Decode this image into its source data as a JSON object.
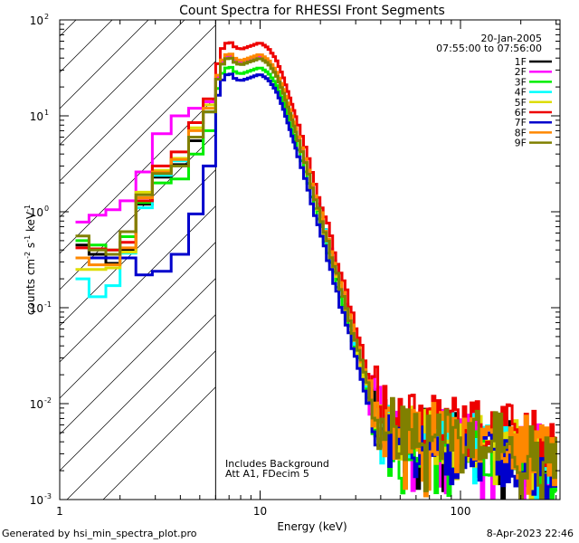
{
  "chart_data": {
    "type": "line",
    "title": "Count Spectra for RHESSI Front Segments",
    "xlabel": "Energy (keV)",
    "ylabel_parts": {
      "pre": "counts cm",
      "exp1": "-2",
      "mid1": " s",
      "exp2": "-1",
      "mid2": " keV",
      "exp3": "-1"
    },
    "x_scale": "log",
    "y_scale": "log",
    "xlim": [
      1,
      300
    ],
    "ylim": [
      0.001,
      100
    ],
    "x_ticks": [
      {
        "value": 1,
        "label": "1"
      },
      {
        "value": 10,
        "label": "10"
      },
      {
        "value": 100,
        "label": "100"
      }
    ],
    "y_ticks": [
      {
        "value": 0.001,
        "base": "10",
        "exp": "-3"
      },
      {
        "value": 0.01,
        "base": "10",
        "exp": "-2"
      },
      {
        "value": 0.1,
        "base": "10",
        "exp": "-1"
      },
      {
        "value": 1,
        "base": "10",
        "exp": "0"
      },
      {
        "value": 10,
        "base": "10",
        "exp": "1"
      },
      {
        "value": 100,
        "base": "10",
        "exp": "2"
      }
    ],
    "date": "20-Jan-2005",
    "time_range": "07:55:00 to 07:56:00",
    "annotation_lines": [
      "Includes Background",
      "Att A1, FDecim 5"
    ],
    "threshold_energy": 6,
    "series": [
      {
        "name": "1F",
        "color": "#000000",
        "scale": 1.0,
        "jitter": 0.3,
        "seed": 11,
        "low": [
          {
            "x": [
              1.2,
              1.4
            ],
            "y": 0.45
          },
          {
            "x": [
              1.4,
              1.7
            ],
            "y": 0.36
          },
          {
            "x": [
              1.7,
              2.0
            ],
            "y": 0.29
          },
          {
            "x": [
              2.0,
              2.4
            ],
            "y": 0.4
          },
          {
            "x": [
              2.4,
              2.9
            ],
            "y": 1.2
          },
          {
            "x": [
              2.9,
              3.6
            ],
            "y": 2.3
          },
          {
            "x": [
              3.6,
              4.4
            ],
            "y": 3.1
          },
          {
            "x": [
              4.4,
              5.2
            ],
            "y": 5.5
          },
          {
            "x": [
              5.2,
              6.0
            ],
            "y": 11
          }
        ]
      },
      {
        "name": "2F",
        "color": "#ff00ff",
        "scale": 1.05,
        "jitter": 0.32,
        "seed": 22,
        "low": [
          {
            "x": [
              1.2,
              1.4
            ],
            "y": 0.78
          },
          {
            "x": [
              1.4,
              1.7
            ],
            "y": 0.92
          },
          {
            "x": [
              1.7,
              2.0
            ],
            "y": 1.05
          },
          {
            "x": [
              2.0,
              2.4
            ],
            "y": 1.3
          },
          {
            "x": [
              2.4,
              2.9
            ],
            "y": 2.6
          },
          {
            "x": [
              2.9,
              3.6
            ],
            "y": 6.5
          },
          {
            "x": [
              3.6,
              4.4
            ],
            "y": 10
          },
          {
            "x": [
              4.4,
              5.2
            ],
            "y": 12
          },
          {
            "x": [
              5.2,
              6.0
            ],
            "y": 14
          }
        ]
      },
      {
        "name": "3F",
        "color": "#00ee00",
        "scale": 0.8,
        "jitter": 0.3,
        "seed": 33,
        "low": [
          {
            "x": [
              1.2,
              1.4
            ],
            "y": 0.5
          },
          {
            "x": [
              1.4,
              1.7
            ],
            "y": 0.45
          },
          {
            "x": [
              1.7,
              2.0
            ],
            "y": 0.4
          },
          {
            "x": [
              2.0,
              2.4
            ],
            "y": 0.55
          },
          {
            "x": [
              2.4,
              2.9
            ],
            "y": 1.25
          },
          {
            "x": [
              2.9,
              3.6
            ],
            "y": 2.0
          },
          {
            "x": [
              3.6,
              4.4
            ],
            "y": 2.2
          },
          {
            "x": [
              4.4,
              5.2
            ],
            "y": 4.0
          },
          {
            "x": [
              5.2,
              6.0
            ],
            "y": 7.0
          }
        ]
      },
      {
        "name": "4F",
        "color": "#00ffff",
        "scale": 1.0,
        "jitter": 0.3,
        "seed": 44,
        "low": [
          {
            "x": [
              1.2,
              1.4
            ],
            "y": 0.2
          },
          {
            "x": [
              1.4,
              1.7
            ],
            "y": 0.13
          },
          {
            "x": [
              1.7,
              2.0
            ],
            "y": 0.17
          },
          {
            "x": [
              2.0,
              2.4
            ],
            "y": 0.37
          },
          {
            "x": [
              2.4,
              2.9
            ],
            "y": 1.1
          },
          {
            "x": [
              2.9,
              3.6
            ],
            "y": 2.4
          },
          {
            "x": [
              3.6,
              4.4
            ],
            "y": 3.4
          },
          {
            "x": [
              4.4,
              5.2
            ],
            "y": 6.0
          },
          {
            "x": [
              5.2,
              6.0
            ],
            "y": 11
          }
        ]
      },
      {
        "name": "5F",
        "color": "#dddd00",
        "scale": 1.0,
        "jitter": 0.3,
        "seed": 55,
        "low": [
          {
            "x": [
              1.2,
              1.4
            ],
            "y": 0.25
          },
          {
            "x": [
              1.4,
              1.7
            ],
            "y": 0.25
          },
          {
            "x": [
              1.7,
              2.0
            ],
            "y": 0.26
          },
          {
            "x": [
              2.0,
              2.4
            ],
            "y": 0.38
          },
          {
            "x": [
              2.4,
              2.9
            ],
            "y": 1.6
          },
          {
            "x": [
              2.9,
              3.6
            ],
            "y": 2.7
          },
          {
            "x": [
              3.6,
              4.4
            ],
            "y": 3.6
          },
          {
            "x": [
              4.4,
              5.2
            ],
            "y": 7.5
          },
          {
            "x": [
              5.2,
              6.0
            ],
            "y": 13
          }
        ]
      },
      {
        "name": "6F",
        "color": "#ee0000",
        "scale": 1.45,
        "jitter": 0.32,
        "seed": 66,
        "low": [
          {
            "x": [
              1.2,
              1.4
            ],
            "y": 0.42
          },
          {
            "x": [
              1.4,
              1.7
            ],
            "y": 0.41
          },
          {
            "x": [
              1.7,
              2.0
            ],
            "y": 0.4
          },
          {
            "x": [
              2.0,
              2.4
            ],
            "y": 0.48
          },
          {
            "x": [
              2.4,
              2.9
            ],
            "y": 1.3
          },
          {
            "x": [
              2.9,
              3.6
            ],
            "y": 3.0
          },
          {
            "x": [
              3.6,
              4.4
            ],
            "y": 4.2
          },
          {
            "x": [
              4.4,
              5.2
            ],
            "y": 8.5
          },
          {
            "x": [
              5.2,
              6.0
            ],
            "y": 15
          }
        ]
      },
      {
        "name": "7F",
        "color": "#0000cc",
        "scale": 0.68,
        "jitter": 0.3,
        "seed": 77,
        "low": [
          {
            "x": [
              1.2,
              1.4
            ],
            "y": 0.33
          },
          {
            "x": [
              1.4,
              1.7
            ],
            "y": 0.33
          },
          {
            "x": [
              1.7,
              2.0
            ],
            "y": 0.33
          },
          {
            "x": [
              2.0,
              2.4
            ],
            "y": 0.33
          },
          {
            "x": [
              2.4,
              2.9
            ],
            "y": 0.22
          },
          {
            "x": [
              2.9,
              3.6
            ],
            "y": 0.24
          },
          {
            "x": [
              3.6,
              4.4
            ],
            "y": 0.36
          },
          {
            "x": [
              4.4,
              5.2
            ],
            "y": 0.95
          },
          {
            "x": [
              5.2,
              6.0
            ],
            "y": 3.0
          }
        ]
      },
      {
        "name": "8F",
        "color": "#ff8800",
        "scale": 1.1,
        "jitter": 0.34,
        "seed": 88,
        "low": [
          {
            "x": [
              1.2,
              1.4
            ],
            "y": 0.33
          },
          {
            "x": [
              1.4,
              1.7
            ],
            "y": 0.28
          },
          {
            "x": [
              1.7,
              2.0
            ],
            "y": 0.28
          },
          {
            "x": [
              2.0,
              2.4
            ],
            "y": 0.42
          },
          {
            "x": [
              2.4,
              2.9
            ],
            "y": 1.4
          },
          {
            "x": [
              2.9,
              3.6
            ],
            "y": 2.6
          },
          {
            "x": [
              3.6,
              4.4
            ],
            "y": 3.5
          },
          {
            "x": [
              4.4,
              5.2
            ],
            "y": 7.0
          },
          {
            "x": [
              5.2,
              6.0
            ],
            "y": 12
          }
        ]
      },
      {
        "name": "9F",
        "color": "#808000",
        "scale": 1.0,
        "jitter": 0.34,
        "seed": 99,
        "low": [
          {
            "x": [
              1.2,
              1.4
            ],
            "y": 0.56
          },
          {
            "x": [
              1.4,
              1.7
            ],
            "y": 0.4
          },
          {
            "x": [
              1.7,
              2.0
            ],
            "y": 0.36
          },
          {
            "x": [
              2.0,
              2.4
            ],
            "y": 0.62
          },
          {
            "x": [
              2.4,
              2.9
            ],
            "y": 1.5
          },
          {
            "x": [
              2.9,
              3.6
            ],
            "y": 2.5
          },
          {
            "x": [
              3.6,
              4.4
            ],
            "y": 3.0
          },
          {
            "x": [
              4.4,
              5.2
            ],
            "y": 6.0
          },
          {
            "x": [
              5.2,
              6.0
            ],
            "y": 11
          }
        ]
      }
    ],
    "base_spectrum": [
      {
        "e": 6.0,
        "y": 20
      },
      {
        "e": 6.5,
        "y": 35
      },
      {
        "e": 7.0,
        "y": 42
      },
      {
        "e": 7.5,
        "y": 36
      },
      {
        "e": 8.0,
        "y": 34
      },
      {
        "e": 9.0,
        "y": 37
      },
      {
        "e": 10.0,
        "y": 40
      },
      {
        "e": 11.0,
        "y": 35
      },
      {
        "e": 12.0,
        "y": 27
      },
      {
        "e": 13.0,
        "y": 18
      },
      {
        "e": 14.0,
        "y": 11
      },
      {
        "e": 15.0,
        "y": 7
      },
      {
        "e": 17.0,
        "y": 3
      },
      {
        "e": 19.0,
        "y": 1.3
      },
      {
        "e": 22.0,
        "y": 0.45
      },
      {
        "e": 25.0,
        "y": 0.17
      },
      {
        "e": 28.0,
        "y": 0.075
      },
      {
        "e": 31.0,
        "y": 0.035
      },
      {
        "e": 35.0,
        "y": 0.013
      },
      {
        "e": 40.0,
        "y": 0.0065
      },
      {
        "e": 50.0,
        "y": 0.005
      },
      {
        "e": 70.0,
        "y": 0.0045
      },
      {
        "e": 100.0,
        "y": 0.0042
      },
      {
        "e": 150.0,
        "y": 0.004
      },
      {
        "e": 200.0,
        "y": 0.0035
      },
      {
        "e": 250.0,
        "y": 0.0028
      },
      {
        "e": 300.0,
        "y": 0.0022
      }
    ]
  },
  "footer": {
    "generated_by": "Generated by hsi_min_spectra_plot.pro",
    "timestamp": "8-Apr-2023 22:46"
  }
}
